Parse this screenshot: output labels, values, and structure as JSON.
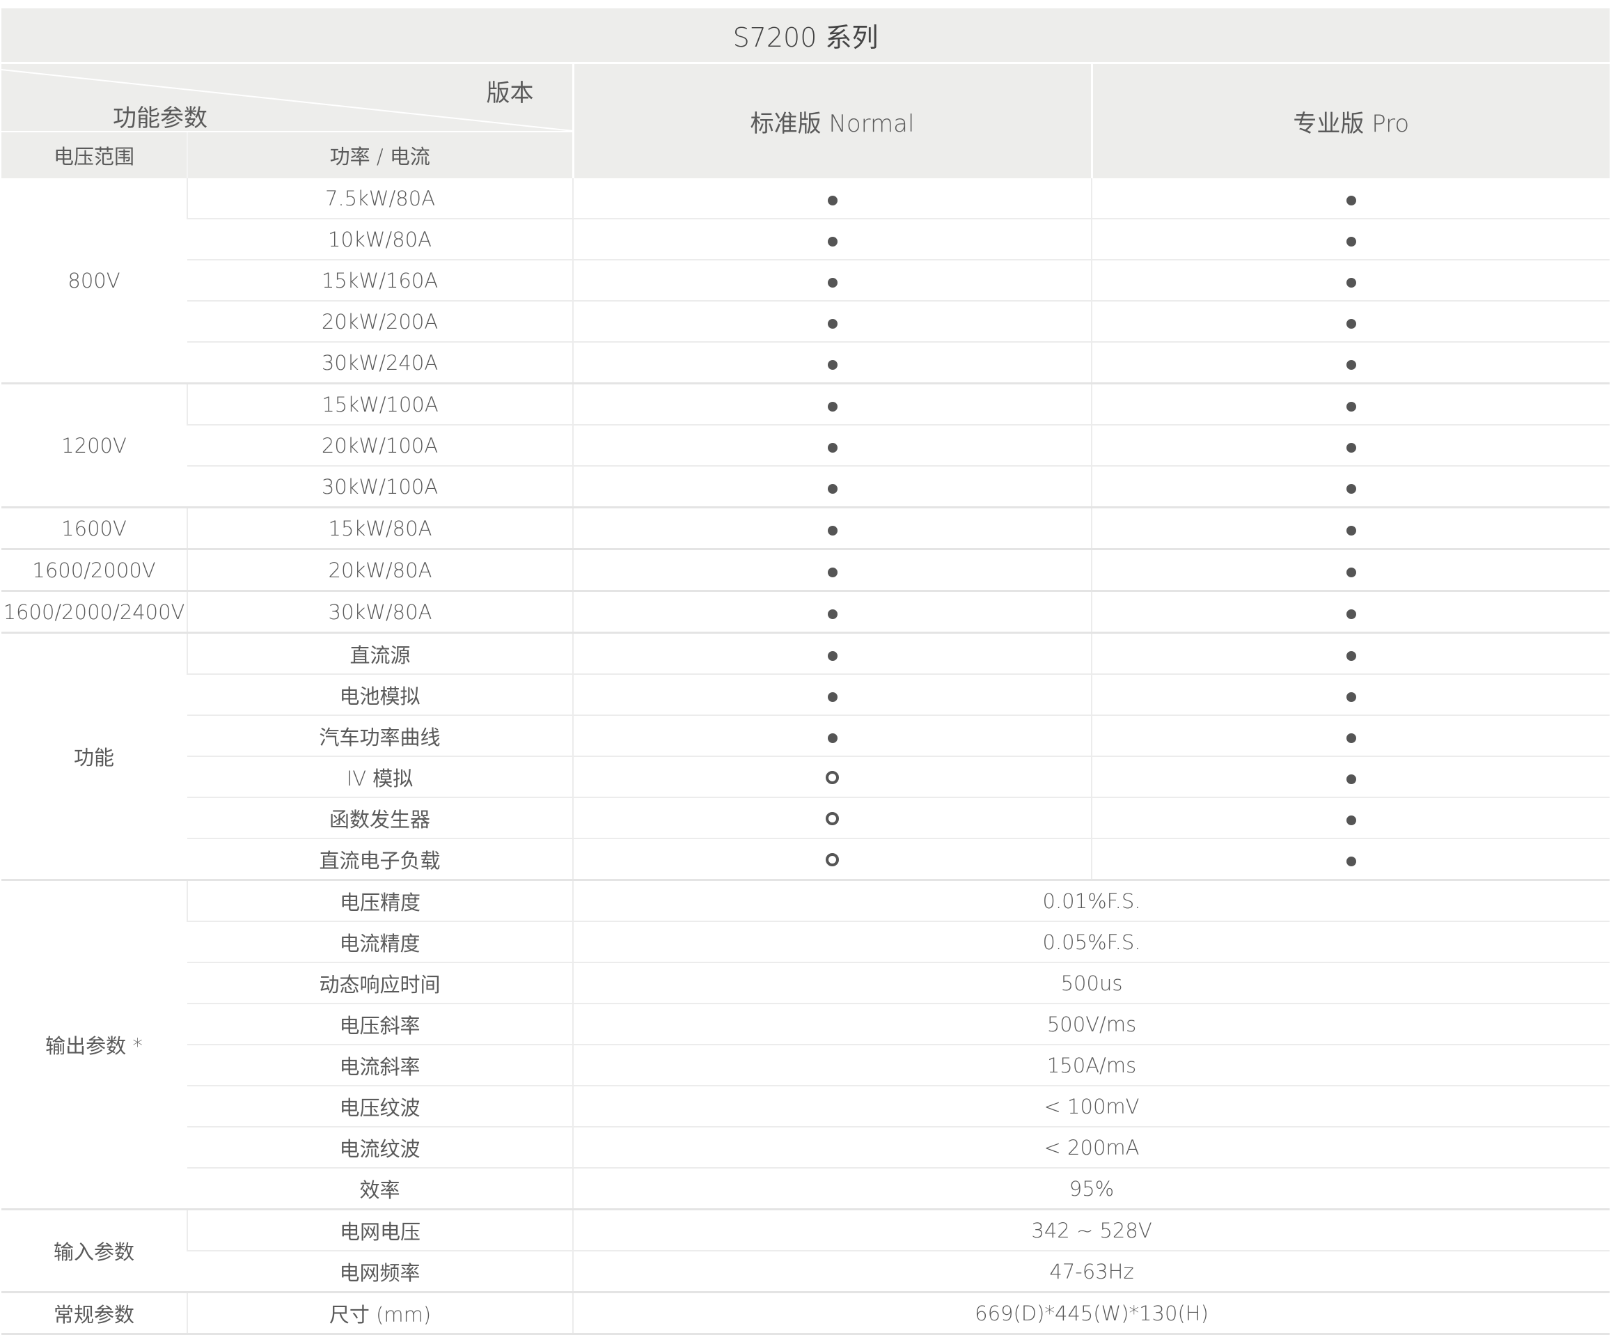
{
  "title": "S7200 系列",
  "header": {
    "version_label": "版本",
    "function_label": "功能参数",
    "col_voltage": "电压范围",
    "col_power": "功率 / 电流",
    "col_normal": "标准版 Normal",
    "col_pro": "专业版 Pro"
  },
  "legend_marks": {
    "supported": "filled-dot",
    "optional": "hollow-ring"
  },
  "groups": [
    {
      "label": "800V",
      "rows": [
        {
          "item": "7.5kW/80A",
          "normal": "dot",
          "pro": "dot"
        },
        {
          "item": "10kW/80A",
          "normal": "dot",
          "pro": "dot"
        },
        {
          "item": "15kW/160A",
          "normal": "dot",
          "pro": "dot"
        },
        {
          "item": "20kW/200A",
          "normal": "dot",
          "pro": "dot"
        },
        {
          "item": "30kW/240A",
          "normal": "dot",
          "pro": "dot"
        }
      ]
    },
    {
      "label": "1200V",
      "rows": [
        {
          "item": "15kW/100A",
          "normal": "dot",
          "pro": "dot"
        },
        {
          "item": "20kW/100A",
          "normal": "dot",
          "pro": "dot"
        },
        {
          "item": "30kW/100A",
          "normal": "dot",
          "pro": "dot"
        }
      ]
    },
    {
      "label": "1600V",
      "rows": [
        {
          "item": "15kW/80A",
          "normal": "dot",
          "pro": "dot"
        }
      ]
    },
    {
      "label": "1600/2000V",
      "rows": [
        {
          "item": "20kW/80A",
          "normal": "dot",
          "pro": "dot"
        }
      ]
    },
    {
      "label": "1600/2000/2400V",
      "rows": [
        {
          "item": "30kW/80A",
          "normal": "dot",
          "pro": "dot"
        }
      ]
    },
    {
      "label": "功能",
      "rows": [
        {
          "item": "直流源",
          "normal": "dot",
          "pro": "dot"
        },
        {
          "item": "电池模拟",
          "normal": "dot",
          "pro": "dot"
        },
        {
          "item": "汽车功率曲线",
          "normal": "dot",
          "pro": "dot"
        },
        {
          "item": "IV 模拟",
          "normal": "ring",
          "pro": "dot"
        },
        {
          "item": "函数发生器",
          "normal": "ring",
          "pro": "dot"
        },
        {
          "item": "直流电子负载",
          "normal": "ring",
          "pro": "dot"
        }
      ]
    },
    {
      "label": "输出参数 *",
      "rows": [
        {
          "item": "电压精度",
          "value": "0.01%F.S."
        },
        {
          "item": "电流精度",
          "value": "0.05%F.S."
        },
        {
          "item": "动态响应时间",
          "value": "500us"
        },
        {
          "item": "电压斜率",
          "value": "500V/ms"
        },
        {
          "item": "电流斜率",
          "value": "150A/ms"
        },
        {
          "item": "电压纹波",
          "value": "< 100mV"
        },
        {
          "item": "电流纹波",
          "value": "< 200mA"
        },
        {
          "item": "效率",
          "value": "95%"
        }
      ]
    },
    {
      "label": "输入参数",
      "rows": [
        {
          "item": "电网电压",
          "value": "342 ~ 528V"
        },
        {
          "item": "电网频率",
          "value": "47-63Hz"
        }
      ]
    },
    {
      "label": "常规参数",
      "rows": [
        {
          "item": "尺寸 (mm)",
          "value": "669(D)*445(W)*130(H)"
        }
      ]
    }
  ]
}
